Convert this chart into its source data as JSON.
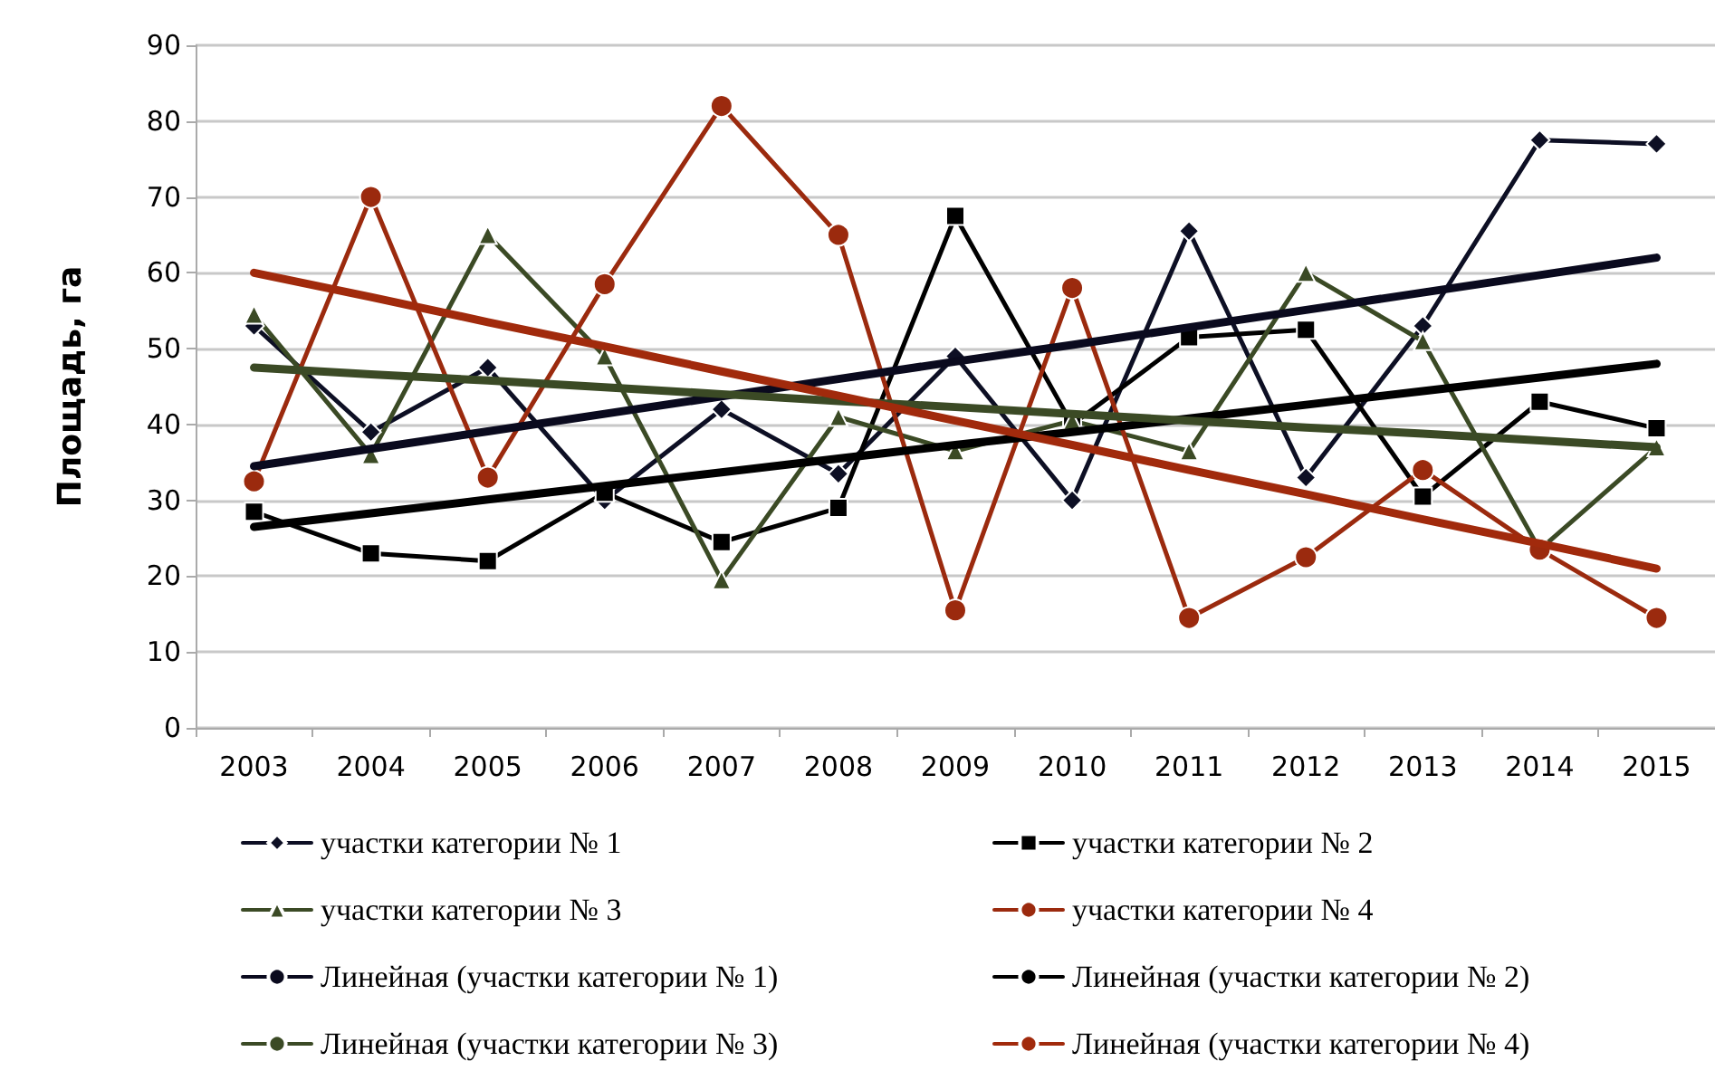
{
  "chart_data": {
    "type": "line",
    "ylabel": "Площадь, га",
    "categories": [
      "2003",
      "2004",
      "2005",
      "2006",
      "2007",
      "2008",
      "2009",
      "2010",
      "2011",
      "2012",
      "2013",
      "2014",
      "2015"
    ],
    "ylim": [
      0,
      90
    ],
    "yticks": [
      0,
      10,
      20,
      30,
      40,
      50,
      60,
      70,
      80,
      90
    ],
    "grid": "y",
    "legend": "bottom",
    "line_style": "solid",
    "series": [
      {
        "name": "участки категории № 1",
        "color": "#0d0f24",
        "marker": "diamond",
        "values": [
          53,
          39,
          47.5,
          30,
          42,
          33.5,
          49,
          30,
          65.5,
          33,
          53,
          77.5,
          77
        ]
      },
      {
        "name": "участки категории № 2",
        "color": "#000000",
        "marker": "square",
        "values": [
          28.5,
          23,
          22,
          31,
          24.5,
          29,
          67.5,
          40,
          51.5,
          52.5,
          30.5,
          43,
          39.5
        ]
      },
      {
        "name": "участки категории № 3",
        "color": "#3b4a25",
        "marker": "triangle",
        "values": [
          54.5,
          36,
          65,
          49,
          19.5,
          41,
          36.5,
          40.5,
          36.5,
          60,
          51,
          23.5,
          37
        ]
      },
      {
        "name": "участки категории № 4",
        "color": "#9b2a0e",
        "marker": "circle",
        "values": [
          32.5,
          70,
          33,
          58.5,
          82,
          65,
          15.5,
          58,
          14.5,
          22.5,
          34,
          23.5,
          14.5
        ]
      },
      {
        "name": "Линейная (участки категории № 1)",
        "color": "#0a0a1e",
        "marker": "none",
        "values": [
          34.5,
          36.8,
          39.1,
          41.4,
          43.7,
          46,
          48.3,
          50.5,
          52.8,
          55.1,
          57.4,
          59.7,
          62
        ]
      },
      {
        "name": "Линейная (участки категории № 2)",
        "color": "#000000",
        "marker": "none",
        "values": [
          26.5,
          28.3,
          30.1,
          31.9,
          33.7,
          35.5,
          37.3,
          39,
          40.8,
          42.6,
          44.4,
          46.2,
          48
        ]
      },
      {
        "name": "Линейная (участки категории № 3)",
        "color": "#3b4a25",
        "marker": "none",
        "values": [
          47.5,
          46.6,
          45.8,
          44.9,
          44,
          43.1,
          42.3,
          41.4,
          40.5,
          39.6,
          38.8,
          37.9,
          37
        ]
      },
      {
        "name": "Линейная (участки категории № 4)",
        "color": "#a12a0c",
        "marker": "none",
        "values": [
          60,
          56.8,
          53.5,
          50.3,
          47,
          43.8,
          40.5,
          37.3,
          34,
          30.8,
          27.5,
          24.3,
          21
        ]
      }
    ]
  }
}
